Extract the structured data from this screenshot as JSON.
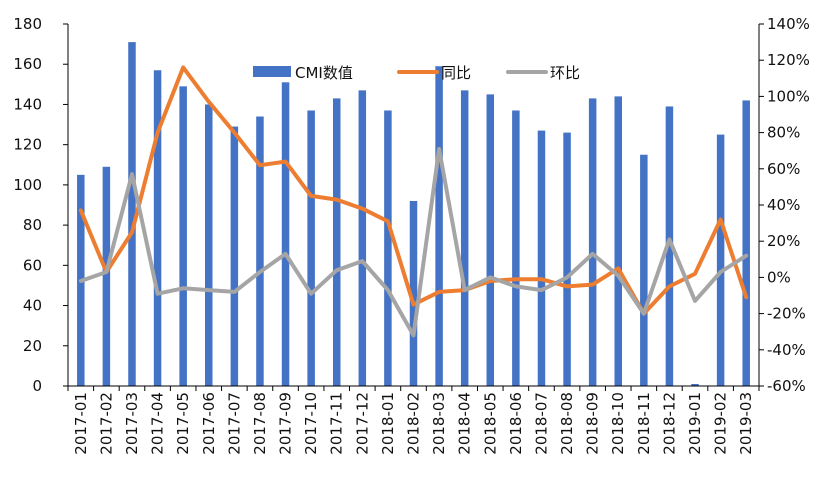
{
  "chart_data": {
    "type": "bar+line",
    "categories": [
      "2017-01",
      "2017-02",
      "2017-03",
      "2017-04",
      "2017-05",
      "2017-06",
      "2017-07",
      "2017-08",
      "2017-09",
      "2017-10",
      "2017-11",
      "2017-12",
      "2018-01",
      "2018-02",
      "2018-03",
      "2018-04",
      "2018-05",
      "2018-06",
      "2018-07",
      "2018-08",
      "2018-09",
      "2018-10",
      "2018-11",
      "2018-12",
      "2019-01",
      "2019-02",
      "2019-03"
    ],
    "series": [
      {
        "name": "CMI数值",
        "kind": "bar",
        "axis": "left",
        "color": "#4472C4",
        "values": [
          105,
          109,
          171,
          157,
          149,
          140,
          129,
          134,
          151,
          137,
          143,
          147,
          137,
          92,
          159,
          147,
          145,
          137,
          127,
          126,
          143,
          144,
          115,
          139,
          1,
          125,
          142
        ]
      },
      {
        "name": "同比",
        "kind": "line",
        "axis": "right",
        "color": "#ED7D31",
        "values": [
          37,
          3,
          25,
          80,
          116,
          97,
          80,
          62,
          64,
          45,
          43,
          38,
          31,
          -15,
          -8,
          -7,
          -2,
          -1,
          -1,
          -5,
          -4,
          5,
          -20,
          -5,
          2,
          32,
          -11
        ]
      },
      {
        "name": "环比",
        "kind": "line",
        "axis": "right",
        "color": "#A5A5A5",
        "values": [
          -2,
          3,
          57,
          -9,
          -6,
          -7,
          -8,
          3,
          13,
          -9,
          4,
          9,
          -7,
          -32,
          71,
          -7,
          0,
          -5,
          -7,
          0,
          13,
          1,
          -20,
          21,
          -13,
          3,
          12
        ]
      }
    ],
    "y_left": {
      "min": 0,
      "max": 180,
      "ticks": [
        "0",
        "20",
        "40",
        "60",
        "80",
        "100",
        "120",
        "140",
        "160",
        "180"
      ]
    },
    "y_right": {
      "min": -60,
      "max": 140,
      "ticks": [
        "-60%",
        "-40%",
        "-20%",
        "0%",
        "20%",
        "40%",
        "60%",
        "80%",
        "100%",
        "120%",
        "140%"
      ]
    },
    "legend_position": "top-center",
    "grid": false
  }
}
